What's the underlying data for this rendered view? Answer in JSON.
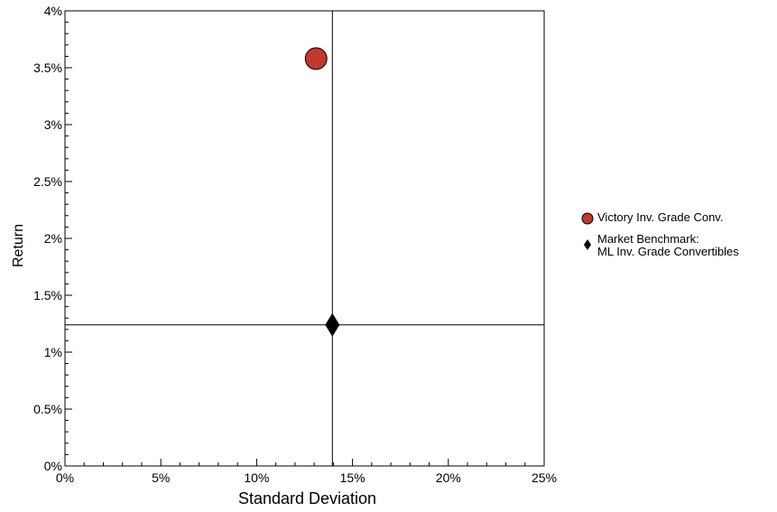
{
  "chart_data": {
    "type": "scatter",
    "xlabel": "Standard Deviation",
    "ylabel": "Return",
    "xlim": [
      0,
      25
    ],
    "ylim": [
      0,
      4
    ],
    "x_ticks": [
      "0%",
      "5%",
      "10%",
      "15%",
      "20%",
      "25%"
    ],
    "x_tick_values": [
      0,
      5,
      10,
      15,
      20,
      25
    ],
    "y_ticks": [
      "0%",
      "0.5%",
      "1%",
      "1.5%",
      "2%",
      "2.5%",
      "3%",
      "3.5%",
      "4%"
    ],
    "y_tick_values": [
      0,
      0.5,
      1,
      1.5,
      2,
      2.5,
      3,
      3.5,
      4
    ],
    "grid": false,
    "legend_position": "right",
    "series": [
      {
        "name": "Victory Inv. Grade Conv.",
        "x": 13.1,
        "y": 3.58,
        "marker": "circle",
        "color": "#c0392b"
      },
      {
        "name_lines": [
          "Market Benchmark:",
          "ML Inv. Grade Convertibles"
        ],
        "x": 13.95,
        "y": 1.24,
        "marker": "diamond",
        "color": "#000000"
      }
    ],
    "reference_lines": {
      "x": 13.95,
      "y": 1.24
    }
  }
}
